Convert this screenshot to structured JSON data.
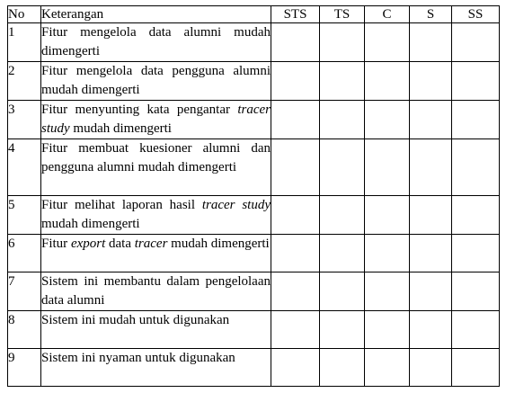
{
  "headers": {
    "no": "No",
    "keterangan": "Keterangan",
    "scale": [
      "STS",
      "TS",
      "C",
      "S",
      "SS"
    ]
  },
  "rows": [
    {
      "no": "1",
      "parts": [
        {
          "t": "Fitur mengelola data alumni mudah dimengerti",
          "i": false
        }
      ]
    },
    {
      "no": "2",
      "parts": [
        {
          "t": "Fitur mengelola data pengguna alumni mudah dimengerti",
          "i": false
        }
      ]
    },
    {
      "no": "3",
      "parts": [
        {
          "t": "Fitur menyunting kata pengantar ",
          "i": false
        },
        {
          "t": "tracer study",
          "i": true
        },
        {
          "t": " mudah dimengerti",
          "i": false
        }
      ]
    },
    {
      "no": "4",
      "parts": [
        {
          "t": "Fitur membuat kuesioner alumni dan pengguna alumni mudah dimengerti",
          "i": false
        }
      ]
    },
    {
      "no": "5",
      "parts": [
        {
          "t": "Fitur melihat laporan hasil ",
          "i": false
        },
        {
          "t": "tracer study",
          "i": true
        },
        {
          "t": " mudah dimengerti",
          "i": false
        }
      ]
    },
    {
      "no": "6",
      "parts": [
        {
          "t": "Fitur ",
          "i": false
        },
        {
          "t": "export",
          "i": true
        },
        {
          "t": " data ",
          "i": false
        },
        {
          "t": "tracer",
          "i": true
        },
        {
          "t": " mudah dimengerti",
          "i": false
        }
      ]
    },
    {
      "no": "7",
      "parts": [
        {
          "t": "Sistem ini membantu dalam pengelolaan data alumni",
          "i": false
        }
      ]
    },
    {
      "no": "8",
      "parts": [
        {
          "t": "Sistem ini mudah untuk digunakan",
          "i": false
        }
      ]
    },
    {
      "no": "9",
      "parts": [
        {
          "t": "Sistem ini nyaman untuk digunakan",
          "i": false
        }
      ]
    }
  ]
}
